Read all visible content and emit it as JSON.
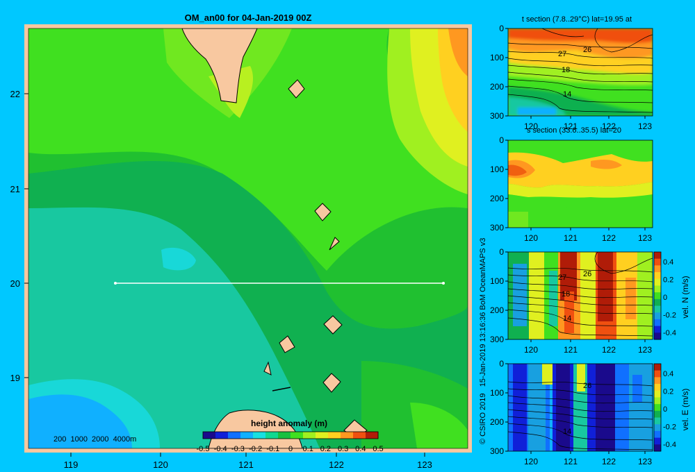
{
  "main_map": {
    "title": "OM_an00 for 04-Jan-2019 00Z",
    "y_ticks": [
      "22",
      "21",
      "20",
      "19"
    ],
    "x_ticks": [
      "119",
      "120",
      "121",
      "122",
      "123"
    ],
    "depth_legend": "200  1000  2000  4000m",
    "colorbar": {
      "title": "height anomaly (m)",
      "tick_labels": [
        "-0.5",
        "-0.4",
        "-0.3",
        "-0.2",
        "-0.1",
        "0",
        "0.1",
        "0.2",
        "0.3",
        "0.4",
        "0.5"
      ],
      "colors": [
        "#1a0a8c",
        "#1020d8",
        "#1070ff",
        "#10b0ff",
        "#18e0e0",
        "#10d890",
        "#18c040",
        "#40e020",
        "#a0f020",
        "#e0f020",
        "#ffd020",
        "#ff9820",
        "#f05010",
        "#b01c08"
      ]
    },
    "palette": {
      "border": "#f8c8a0",
      "land": "#f8c8a0",
      "section_line": "#ffffff"
    }
  },
  "panels": [
    {
      "title": "t section (7.8..29°C) lat=19.95 at",
      "y_ticks": [
        "0",
        "100",
        "200",
        "300"
      ],
      "x_ticks": [
        "120",
        "121",
        "122",
        "123"
      ],
      "contour_labels": [
        "27",
        "26",
        "18",
        "14"
      ],
      "side_label": ""
    },
    {
      "title": "s section (33.6..35.5) lat=20",
      "y_ticks": [
        "0",
        "100",
        "200",
        "300"
      ],
      "x_ticks": [
        "120",
        "121",
        "122",
        "123"
      ],
      "contour_labels": [],
      "side_label": ""
    },
    {
      "title": "",
      "y_ticks": [
        "0",
        "100",
        "200",
        "300"
      ],
      "x_ticks": [
        "120",
        "121",
        "122",
        "123"
      ],
      "contour_labels": [
        "27",
        "26",
        "18",
        "14"
      ],
      "side_label": "vel. N (m/s)",
      "colorbar_ticks": [
        "0.4",
        "0.2",
        "0",
        "-0.2",
        "-0.4"
      ]
    },
    {
      "title": "",
      "y_ticks": [
        "0",
        "100",
        "200",
        "300"
      ],
      "x_ticks": [
        "120",
        "121",
        "122",
        "123"
      ],
      "contour_labels": [
        "26",
        "14"
      ],
      "side_label": "vel. E (m/s)",
      "colorbar_ticks": [
        "0.4",
        "0.2",
        "0",
        "-0.2",
        "-0.4"
      ]
    }
  ],
  "credit": "© CSIRO 2019   15-Jan-2019 13:16:36 BoM OceanMAPS v3"
}
